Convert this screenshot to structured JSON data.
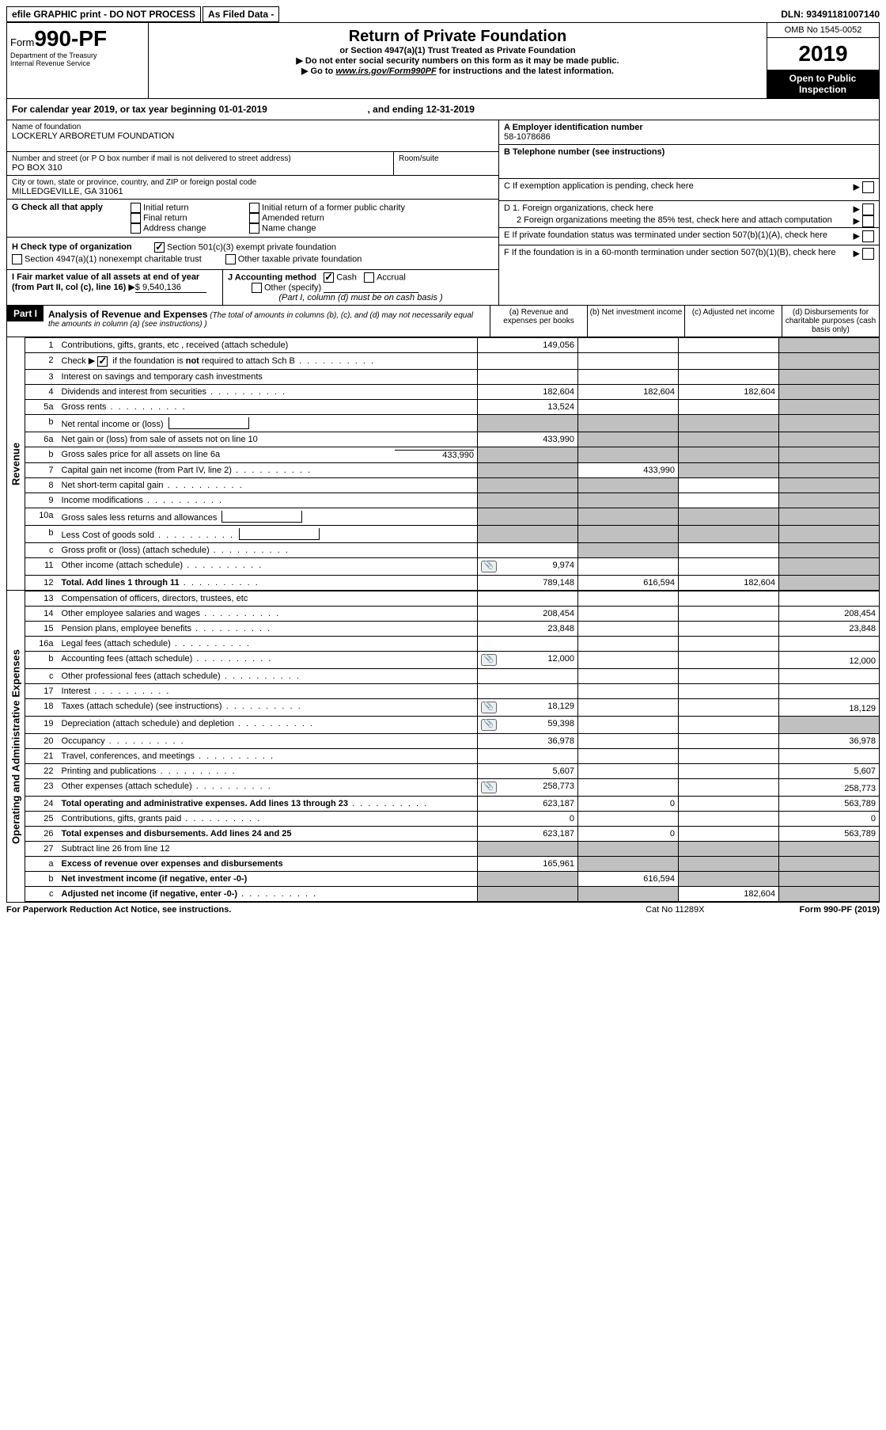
{
  "header": {
    "efile": "efile GRAPHIC print - DO NOT PROCESS",
    "asfiled": "As Filed Data -",
    "dln_label": "DLN:",
    "dln": "93491181007140",
    "form_prefix": "Form",
    "form_no": "990-PF",
    "dept": "Department of the Treasury",
    "irs": "Internal Revenue Service",
    "title": "Return of Private Foundation",
    "subtitle": "or Section 4947(a)(1) Trust Treated as Private Foundation",
    "warn1": "Do not enter social security numbers on this form as it may be made public.",
    "warn2_pre": "Go to ",
    "warn2_link": "www.irs.gov/Form990PF",
    "warn2_post": " for instructions and the latest information.",
    "omb": "OMB No  1545-0052",
    "year": "2019",
    "inspection": "Open to Public Inspection"
  },
  "calyear": {
    "text_a": "For calendar year 2019, or tax year beginning 01-01-2019",
    "text_b": ", and ending 12-31-2019"
  },
  "entity": {
    "name_label": "Name of foundation",
    "name": "LOCKERLY ARBORETUM FOUNDATION",
    "street_label": "Number and street (or P O  box number if mail is not delivered to street address)",
    "street": "PO BOX 310",
    "room_label": "Room/suite",
    "city_label": "City or town, state or province, country, and ZIP or foreign postal code",
    "city": "MILLEDGEVILLE, GA  31061"
  },
  "rightcol": {
    "A_label": "A Employer identification number",
    "A_val": "58-1078686",
    "B_label": "B Telephone number (see instructions)",
    "C_label": "C If exemption application is pending, check here",
    "D1": "D 1. Foreign organizations, check here",
    "D2": "2  Foreign organizations meeting the 85% test, check here and attach computation",
    "E": "E  If private foundation status was terminated under section 507(b)(1)(A), check here",
    "F": "F  If the foundation is in a 60-month termination under section 507(b)(1)(B), check here"
  },
  "G": {
    "label": "G Check all that apply",
    "initial": "Initial return",
    "initial_former": "Initial return of a former public charity",
    "final": "Final return",
    "amended": "Amended return",
    "address": "Address change",
    "name": "Name change"
  },
  "H": {
    "label": "H Check type of organization",
    "opt1": "Section 501(c)(3) exempt private foundation",
    "opt2": "Section 4947(a)(1) nonexempt charitable trust",
    "opt3": "Other taxable private foundation"
  },
  "I": {
    "label": "I Fair market value of all assets at end of year (from Part II, col  (c), line 16)",
    "val": "$  9,540,136"
  },
  "J": {
    "label": "J Accounting method",
    "cash": "Cash",
    "accrual": "Accrual",
    "other": "Other (specify)",
    "note": "(Part I, column (d) must be on cash basis )"
  },
  "part1": {
    "badge": "Part I",
    "title": "Analysis of Revenue and Expenses",
    "note": "(The total of amounts in columns (b), (c), and (d) may not necessarily equal the amounts in column (a) (see instructions) )",
    "col_a": "(a)   Revenue and expenses per books",
    "col_b": "(b)   Net investment income",
    "col_c": "(c)   Adjusted net income",
    "col_d": "(d)   Disbursements for charitable purposes (cash basis only)"
  },
  "sideLabels": {
    "revenue": "Revenue",
    "expenses": "Operating and Administrative Expenses"
  },
  "rows": [
    {
      "n": "1",
      "d": "Contributions, gifts, grants, etc , received (attach schedule)",
      "a": "149,056",
      "greyD": true
    },
    {
      "n": "2",
      "d": "Check ▶ ☑ if the foundation is not required to attach Sch  B",
      "dots": true,
      "greyD": true,
      "noborderVals": true
    },
    {
      "n": "3",
      "d": "Interest on savings and temporary cash investments",
      "greyD": true
    },
    {
      "n": "4",
      "d": "Dividends and interest from securities",
      "dots": true,
      "a": "182,604",
      "b": "182,604",
      "c": "182,604",
      "greyD": true
    },
    {
      "n": "5a",
      "d": "Gross rents",
      "dots": true,
      "a": "13,524",
      "greyD": true
    },
    {
      "n": "b",
      "d": "Net rental income or (loss)",
      "inlinebox": true,
      "greyAll": true
    },
    {
      "n": "6a",
      "d": "Net gain or (loss) from sale of assets not on line 10",
      "a": "433,990",
      "greyBCD": true
    },
    {
      "n": "b",
      "d": "Gross sales price for all assets on line 6a",
      "inlineval": "433,990",
      "greyAll": true
    },
    {
      "n": "7",
      "d": "Capital gain net income (from Part IV, line 2)",
      "dots": true,
      "greyA": true,
      "b": "433,990",
      "greyCD": true
    },
    {
      "n": "8",
      "d": "Net short-term capital gain",
      "dots": true,
      "greyABD": true
    },
    {
      "n": "9",
      "d": "Income modifications",
      "dots": true,
      "greyABD": true
    },
    {
      "n": "10a",
      "d": "Gross sales less returns and allowances",
      "inlinebox": true,
      "greyAll": true
    },
    {
      "n": "b",
      "d": "Less  Cost of goods sold",
      "dots": true,
      "inlinebox": true,
      "greyAll": true
    },
    {
      "n": "c",
      "d": "Gross profit or (loss) (attach schedule)",
      "dots": true,
      "greyBD": true
    },
    {
      "n": "11",
      "d": "Other income (attach schedule)",
      "dots": true,
      "icon": true,
      "a": "9,974",
      "greyD": true
    },
    {
      "n": "12",
      "d": "Total. Add lines 1 through 11",
      "dots": true,
      "bold": true,
      "a": "789,148",
      "b": "616,594",
      "c": "182,604",
      "greyD": true
    }
  ],
  "expRows": [
    {
      "n": "13",
      "d": "Compensation of officers, directors, trustees, etc"
    },
    {
      "n": "14",
      "d": "Other employee salaries and wages",
      "dots": true,
      "a": "208,454",
      "d4": "208,454"
    },
    {
      "n": "15",
      "d": "Pension plans, employee benefits",
      "dots": true,
      "a": "23,848",
      "d4": "23,848"
    },
    {
      "n": "16a",
      "d": "Legal fees (attach schedule)",
      "dots": true
    },
    {
      "n": "b",
      "d": "Accounting fees (attach schedule)",
      "dots": true,
      "icon": true,
      "a": "12,000",
      "d4": "12,000"
    },
    {
      "n": "c",
      "d": "Other professional fees (attach schedule)",
      "dots": true
    },
    {
      "n": "17",
      "d": "Interest",
      "dots": true
    },
    {
      "n": "18",
      "d": "Taxes (attach schedule) (see instructions)",
      "dots": true,
      "icon": true,
      "a": "18,129",
      "d4": "18,129"
    },
    {
      "n": "19",
      "d": "Depreciation (attach schedule) and depletion",
      "dots": true,
      "icon": true,
      "a": "59,398",
      "greyD": true
    },
    {
      "n": "20",
      "d": "Occupancy",
      "dots": true,
      "a": "36,978",
      "d4": "36,978"
    },
    {
      "n": "21",
      "d": "Travel, conferences, and meetings",
      "dots": true
    },
    {
      "n": "22",
      "d": "Printing and publications",
      "dots": true,
      "a": "5,607",
      "d4": "5,607"
    },
    {
      "n": "23",
      "d": "Other expenses (attach schedule)",
      "dots": true,
      "icon": true,
      "a": "258,773",
      "d4": "258,773"
    },
    {
      "n": "24",
      "d": "Total operating and administrative expenses. Add lines 13 through 23",
      "dots": true,
      "bold": true,
      "a": "623,187",
      "b": "0",
      "d4": "563,789"
    },
    {
      "n": "25",
      "d": "Contributions, gifts, grants paid",
      "dots": true,
      "a": "0",
      "d4": "0"
    },
    {
      "n": "26",
      "d": "Total expenses and disbursements. Add lines 24 and 25",
      "bold": true,
      "a": "623,187",
      "b": "0",
      "d4": "563,789"
    },
    {
      "n": "27",
      "d": "Subtract line 26 from line 12",
      "greyAll": true
    },
    {
      "n": "a",
      "d": "Excess of revenue over expenses and disbursements",
      "bold": true,
      "a": "165,961",
      "greyBCD": true
    },
    {
      "n": "b",
      "d": "Net investment income (if negative, enter -0-)",
      "bold": true,
      "greyA": true,
      "b": "616,594",
      "greyCD": true
    },
    {
      "n": "c",
      "d": "Adjusted net income (if negative, enter -0-)",
      "dots": true,
      "bold": true,
      "greyAB": true,
      "c": "182,604",
      "greyD": true
    }
  ],
  "footer": {
    "left": "For Paperwork Reduction Act Notice, see instructions.",
    "mid": "Cat  No  11289X",
    "right": "Form 990-PF (2019)"
  }
}
